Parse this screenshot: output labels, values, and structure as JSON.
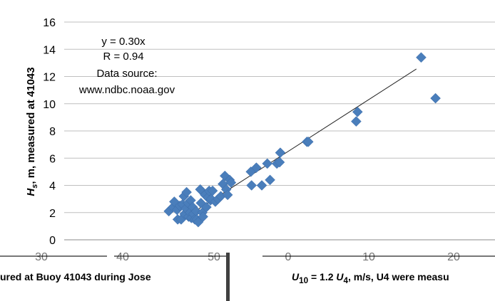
{
  "chart_data": {
    "type": "scatter",
    "ylabel_html": "<tspan font-style='italic'>H</tspan><tspan font-style='italic' font-size='11px' dy='4'>s</tspan><tspan dy='-4'>, m, measured at 41043</tspan>",
    "ylim": [
      0,
      16
    ],
    "y_ticks": [
      "0",
      "2",
      "4",
      "6",
      "8",
      "10",
      "12",
      "14",
      "16"
    ],
    "x_tick_labels": [
      "30",
      "40",
      "50",
      "0",
      "10",
      "20"
    ],
    "grid": "horizontal",
    "color": "#4A7EBB",
    "trendline": {
      "label_eq": "y = 0.30x",
      "label_r": "R = 0.94",
      "from": [
        37.5,
        1.25
      ],
      "to": [
        72.5,
        12.55
      ]
    },
    "annotation_lines": [
      "Data source:",
      "www.ndbc.noaa.gov"
    ],
    "points": [
      [
        36.3,
        2.1
      ],
      [
        36.9,
        2.4
      ],
      [
        37.1,
        2.8
      ],
      [
        37.5,
        2.2
      ],
      [
        37.6,
        1.5
      ],
      [
        37.9,
        2.5
      ],
      [
        38.1,
        1.5
      ],
      [
        38.3,
        2.6
      ],
      [
        38.5,
        3.2
      ],
      [
        38.6,
        1.9
      ],
      [
        38.8,
        2.3
      ],
      [
        38.9,
        3.5
      ],
      [
        39.1,
        2.7
      ],
      [
        39.2,
        1.7
      ],
      [
        39.4,
        2.0
      ],
      [
        39.5,
        2.9
      ],
      [
        39.6,
        1.6
      ],
      [
        39.8,
        2.4
      ],
      [
        39.9,
        1.9
      ],
      [
        40.1,
        1.5
      ],
      [
        40.3,
        2.1
      ],
      [
        40.4,
        1.5
      ],
      [
        40.6,
        1.3
      ],
      [
        40.9,
        3.7
      ],
      [
        41.0,
        2.7
      ],
      [
        41.2,
        2.0
      ],
      [
        41.3,
        1.7
      ],
      [
        41.6,
        3.3
      ],
      [
        41.8,
        2.4
      ],
      [
        42.0,
        3.1
      ],
      [
        42.2,
        3.6
      ],
      [
        42.4,
        2.9
      ],
      [
        42.5,
        3.0
      ],
      [
        42.7,
        3.6
      ],
      [
        43.1,
        2.8
      ],
      [
        43.5,
        3.0
      ],
      [
        43.9,
        3.2
      ],
      [
        44.2,
        4.1
      ],
      [
        44.5,
        4.7
      ],
      [
        44.7,
        3.7
      ],
      [
        44.9,
        3.3
      ],
      [
        45.2,
        4.4
      ],
      [
        45.4,
        4.2
      ],
      [
        48.3,
        5.0
      ],
      [
        48.4,
        4.0
      ],
      [
        49.1,
        5.3
      ],
      [
        49.9,
        4.0
      ],
      [
        50.7,
        5.6
      ],
      [
        51.1,
        4.4
      ],
      [
        52.1,
        5.6
      ],
      [
        52.5,
        5.7
      ],
      [
        52.6,
        6.4
      ],
      [
        56.5,
        7.2
      ],
      [
        56.7,
        7.2
      ],
      [
        63.7,
        8.7
      ],
      [
        63.9,
        9.4
      ],
      [
        73.2,
        13.4
      ],
      [
        75.3,
        10.4
      ]
    ]
  },
  "captions": {
    "left": "ured at Buoy 41043 during Jose",
    "right_html": "<i>U</i><sub>10</sub> = 1.2 <i>U</i><sub>4</sub>, m/s, U4 were measu"
  }
}
